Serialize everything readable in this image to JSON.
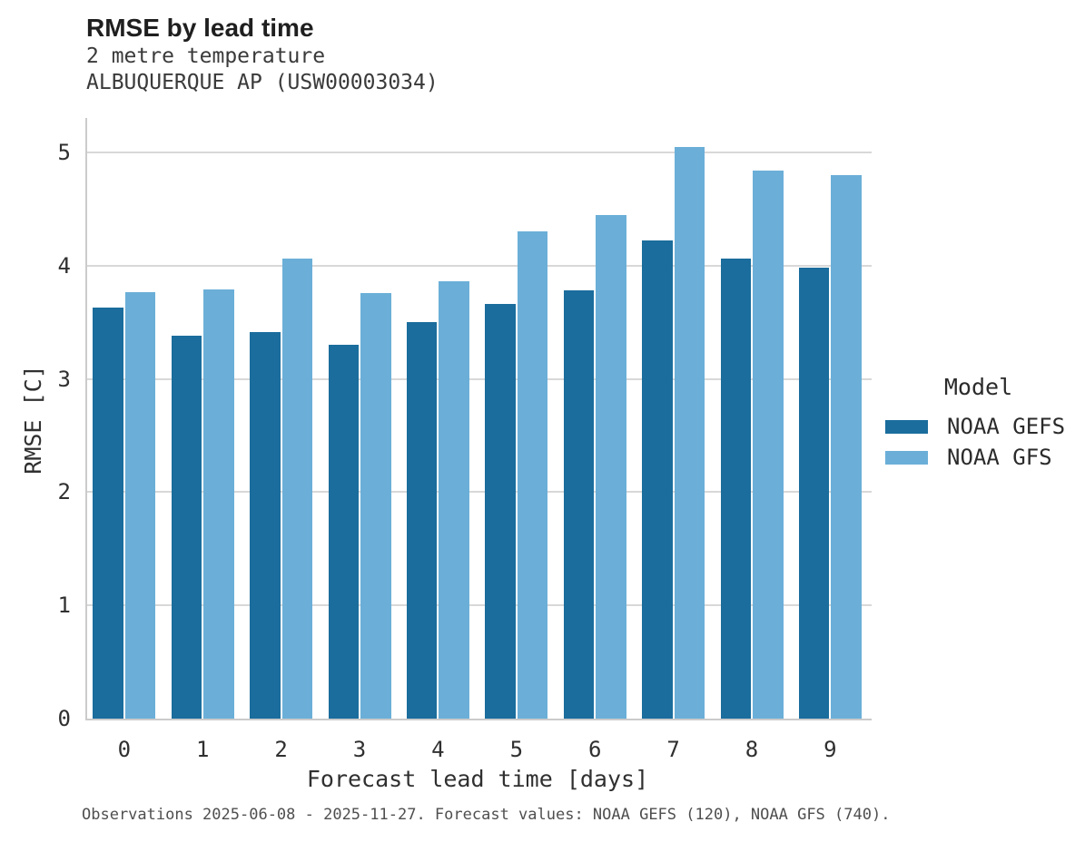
{
  "header": {
    "title": "RMSE by lead time",
    "subtitle_variable": "2 metre temperature",
    "subtitle_station": "ALBUQUERQUE AP (USW00003034)"
  },
  "chart_data": {
    "type": "bar",
    "title": "RMSE by lead time",
    "subtitle": [
      "2 metre temperature",
      "ALBUQUERQUE AP (USW00003034)"
    ],
    "categories": [
      "0",
      "1",
      "2",
      "3",
      "4",
      "5",
      "6",
      "7",
      "8",
      "9"
    ],
    "series": [
      {
        "name": "NOAA GEFS",
        "color": "#1A6D9C",
        "values": [
          3.63,
          3.38,
          3.41,
          3.3,
          3.5,
          3.66,
          3.78,
          4.22,
          4.06,
          3.98
        ]
      },
      {
        "name": "NOAA GFS",
        "color": "#6BAFD8",
        "values": [
          3.77,
          3.79,
          4.06,
          3.76,
          3.86,
          4.3,
          4.45,
          5.05,
          4.84,
          4.8
        ]
      }
    ],
    "xlabel": "Forecast lead time [days]",
    "ylabel": "RMSE [C]",
    "ylim": [
      0,
      5.3
    ],
    "yticks": [
      0,
      1,
      2,
      3,
      4,
      5
    ],
    "grid": "horizontal",
    "legend_title": "Model",
    "legend_position": "right"
  },
  "footer": {
    "note": "Observations 2025-06-08 - 2025-11-27. Forecast values: NOAA GEFS (120), NOAA GFS (740)."
  },
  "colors": {
    "gefs_bar": "#1A6D9C",
    "gfs_bar": "#6BAFD8",
    "gridline": "#D8D8D8",
    "spine": "#CBCBCB",
    "title_text": "#1F1F1F",
    "subtitle_text": "#3A3A3A",
    "tick_text": "#303030",
    "footer_text": "#4F4F4F"
  }
}
